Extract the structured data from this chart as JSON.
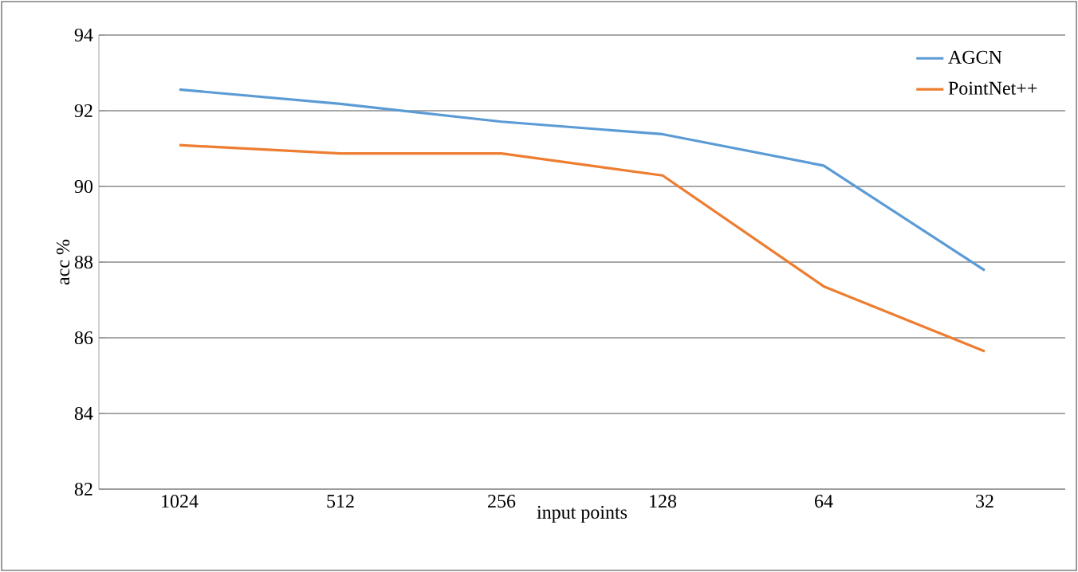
{
  "chart_data": {
    "type": "line",
    "xlabel": "input points",
    "ylabel": "acc %",
    "categories": [
      "1024",
      "512",
      "256",
      "128",
      "64",
      "32"
    ],
    "series": [
      {
        "name": "AGCN",
        "color": "#5b9bd5",
        "values": [
          92.56,
          92.18,
          91.71,
          91.38,
          90.55,
          87.78
        ]
      },
      {
        "name": "PointNet++",
        "color": "#ed7d31",
        "values": [
          91.09,
          90.87,
          90.87,
          90.29,
          87.36,
          85.64
        ]
      }
    ],
    "ylim": [
      82,
      94
    ],
    "yticks": [
      82,
      84,
      86,
      88,
      90,
      92,
      94
    ],
    "grid": "y",
    "legend": "top right",
    "marker": "none",
    "line_style": "solid"
  }
}
